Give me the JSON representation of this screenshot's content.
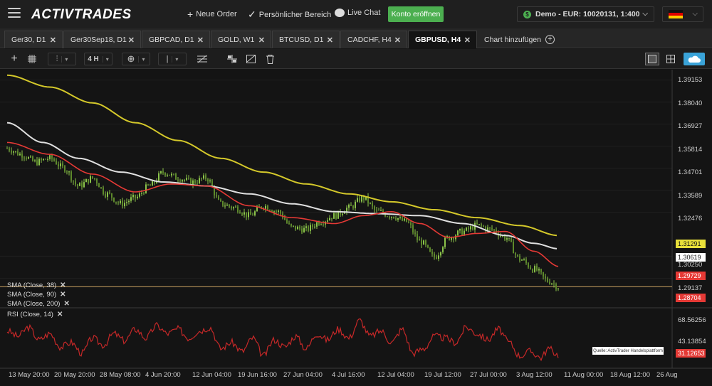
{
  "header": {
    "logo_text": "ACTIVTRADES",
    "new_order": "Neue Order",
    "personal_area": "Persönlicher Bereich",
    "live_chat": "Live Chat",
    "open_account": "Konto eröffnen",
    "account_label": "Demo - EUR: 10020131, 1:400"
  },
  "tabs": [
    {
      "label": "Ger30, D1"
    },
    {
      "label": "Ger30Sep18, D1"
    },
    {
      "label": "GBPCAD, D1"
    },
    {
      "label": "GOLD, W1"
    },
    {
      "label": "BTCUSD, D1"
    },
    {
      "label": "CADCHF, H4"
    },
    {
      "label": "GBPUSD, H4"
    }
  ],
  "add_chart_label": "Chart hinzufügen",
  "toolbar": {
    "timeframe": "4 H"
  },
  "indicators": [
    {
      "label": "SMA (Close, 38)"
    },
    {
      "label": "SMA (Close, 90)"
    },
    {
      "label": "SMA (Close, 200)"
    },
    {
      "label": "RSI (Close, 14)"
    }
  ],
  "source_note": "Quelle: ActivTrader Handelsplattform",
  "colors": {
    "candle_green": "#8bc34a",
    "sma38": "#e53935",
    "sma90": "#e0e0e0",
    "sma200": "#d4c82a",
    "rsi": "#c62828",
    "hline": "#c8a060"
  },
  "chart_data": {
    "type": "line",
    "symbol": "GBPUSD",
    "interval": "H4",
    "y_ticks": [
      "1.39153",
      "1.38040",
      "1.36927",
      "1.35814",
      "1.34701",
      "1.33589",
      "1.32476",
      "1.30250",
      "1.29137"
    ],
    "y_range": [
      1.28,
      1.395
    ],
    "price_tags": [
      {
        "value": "1.31291",
        "color": "#e8e03a",
        "text_color": "#111"
      },
      {
        "value": "1.30619",
        "color": "#ffffff",
        "text_color": "#111"
      },
      {
        "value": "1.29729",
        "color": "#e53935",
        "text_color": "#fff"
      },
      {
        "value": "1.28704",
        "color": "#e53935",
        "text_color": "#fff"
      }
    ],
    "horizontal_line": 1.28704,
    "rsi_ticks": [
      "68.56256",
      "43.13854"
    ],
    "rsi_tag": {
      "value": "31.12653",
      "color": "#e53935"
    },
    "rsi_range": [
      20,
      80
    ],
    "x_labels": [
      "13 May 20:00",
      "20 May 20:00",
      "28 May 08:00",
      "4 Jun 20:00",
      "12 Jun 04:00",
      "19 Jun 16:00",
      "27 Jun 04:00",
      "4 Jul 16:00",
      "12 Jul 04:00",
      "19 Jul 12:00",
      "27 Jul 00:00",
      "3 Aug 12:00",
      "11 Aug 00:00",
      "18 Aug 12:00",
      "26 Aug"
    ],
    "close_anchors": [
      [
        0,
        1.357
      ],
      [
        20,
        1.354
      ],
      [
        40,
        1.35
      ],
      [
        60,
        1.352
      ],
      [
        80,
        1.347
      ],
      [
        100,
        1.338
      ],
      [
        120,
        1.342
      ],
      [
        140,
        1.334
      ],
      [
        160,
        1.329
      ],
      [
        180,
        1.332
      ],
      [
        200,
        1.338
      ],
      [
        220,
        1.345
      ],
      [
        240,
        1.342
      ],
      [
        260,
        1.34
      ],
      [
        280,
        1.342
      ],
      [
        300,
        1.329
      ],
      [
        320,
        1.327
      ],
      [
        340,
        1.323
      ],
      [
        360,
        1.328
      ],
      [
        380,
        1.325
      ],
      [
        400,
        1.317
      ],
      [
        420,
        1.316
      ],
      [
        440,
        1.32
      ],
      [
        460,
        1.323
      ],
      [
        480,
        1.327
      ],
      [
        500,
        1.332
      ],
      [
        520,
        1.325
      ],
      [
        540,
        1.323
      ],
      [
        560,
        1.32
      ],
      [
        580,
        1.31
      ],
      [
        600,
        1.302
      ],
      [
        620,
        1.312
      ],
      [
        640,
        1.315
      ],
      [
        660,
        1.318
      ],
      [
        680,
        1.316
      ],
      [
        700,
        1.312
      ],
      [
        720,
        1.301
      ],
      [
        740,
        1.296
      ],
      [
        760,
        1.29
      ],
      [
        775,
        1.287
      ]
    ],
    "sma38_anchors": [
      [
        0,
        1.36
      ],
      [
        60,
        1.354
      ],
      [
        120,
        1.344
      ],
      [
        180,
        1.335
      ],
      [
        230,
        1.339
      ],
      [
        280,
        1.338
      ],
      [
        340,
        1.328
      ],
      [
        400,
        1.322
      ],
      [
        460,
        1.319
      ],
      [
        500,
        1.323
      ],
      [
        540,
        1.325
      ],
      [
        580,
        1.319
      ],
      [
        620,
        1.312
      ],
      [
        660,
        1.314
      ],
      [
        700,
        1.315
      ],
      [
        740,
        1.305
      ],
      [
        775,
        1.2973
      ]
    ],
    "sma90_anchors": [
      [
        0,
        1.37
      ],
      [
        50,
        1.36
      ],
      [
        100,
        1.352
      ],
      [
        160,
        1.345
      ],
      [
        220,
        1.34
      ],
      [
        280,
        1.338
      ],
      [
        340,
        1.334
      ],
      [
        400,
        1.329
      ],
      [
        460,
        1.325
      ],
      [
        520,
        1.324
      ],
      [
        580,
        1.323
      ],
      [
        640,
        1.319
      ],
      [
        700,
        1.313
      ],
      [
        740,
        1.309
      ],
      [
        775,
        1.3062
      ]
    ],
    "sma200_anchors": [
      [
        0,
        1.394
      ],
      [
        60,
        1.388
      ],
      [
        120,
        1.38
      ],
      [
        180,
        1.37
      ],
      [
        240,
        1.361
      ],
      [
        300,
        1.352
      ],
      [
        360,
        1.345
      ],
      [
        420,
        1.339
      ],
      [
        480,
        1.334
      ],
      [
        540,
        1.33
      ],
      [
        600,
        1.326
      ],
      [
        660,
        1.322
      ],
      [
        720,
        1.318
      ],
      [
        775,
        1.3129
      ]
    ],
    "rsi_anchors": [
      [
        0,
        58
      ],
      [
        15,
        52
      ],
      [
        30,
        62
      ],
      [
        45,
        48
      ],
      [
        60,
        55
      ],
      [
        75,
        40
      ],
      [
        90,
        45
      ],
      [
        105,
        33
      ],
      [
        120,
        50
      ],
      [
        135,
        42
      ],
      [
        150,
        55
      ],
      [
        165,
        47
      ],
      [
        180,
        60
      ],
      [
        195,
        50
      ],
      [
        210,
        64
      ],
      [
        225,
        55
      ],
      [
        240,
        60
      ],
      [
        255,
        50
      ],
      [
        270,
        58
      ],
      [
        285,
        62
      ],
      [
        300,
        38
      ],
      [
        315,
        45
      ],
      [
        330,
        35
      ],
      [
        345,
        50
      ],
      [
        360,
        30
      ],
      [
        375,
        48
      ],
      [
        390,
        40
      ],
      [
        405,
        52
      ],
      [
        420,
        38
      ],
      [
        435,
        55
      ],
      [
        450,
        48
      ],
      [
        465,
        60
      ],
      [
        480,
        50
      ],
      [
        495,
        70
      ],
      [
        510,
        52
      ],
      [
        525,
        58
      ],
      [
        540,
        45
      ],
      [
        555,
        60
      ],
      [
        570,
        33
      ],
      [
        585,
        38
      ],
      [
        600,
        52
      ],
      [
        615,
        50
      ],
      [
        630,
        45
      ],
      [
        645,
        62
      ],
      [
        660,
        55
      ],
      [
        675,
        48
      ],
      [
        690,
        60
      ],
      [
        705,
        45
      ],
      [
        720,
        30
      ],
      [
        735,
        35
      ],
      [
        750,
        28
      ],
      [
        760,
        38
      ],
      [
        775,
        31
      ]
    ]
  }
}
